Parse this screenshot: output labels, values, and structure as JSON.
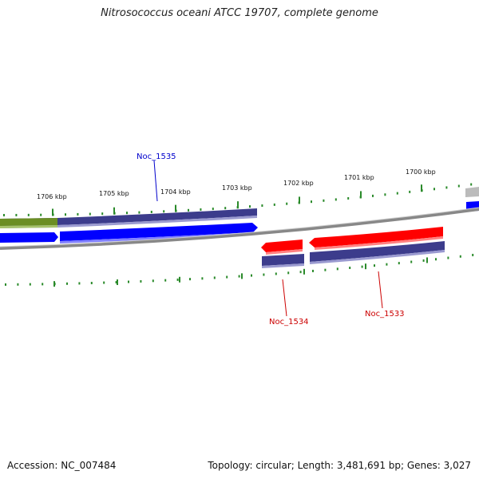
{
  "title": "Nitrosococcus oceani ATCC 19707, complete genome",
  "footer": {
    "accession": "Accession: NC_007484",
    "summary": "Topology: circular; Length: 3,481,691 bp; Genes: 3,027"
  },
  "scale": {
    "ticks": [
      "1706 kbp",
      "1705 kbp",
      "1704 kbp",
      "1703 kbp",
      "1702 kbp",
      "1701 kbp",
      "1700 kbp"
    ]
  },
  "genes": [
    {
      "name": "Noc_1535",
      "color": "#0000cc"
    },
    {
      "name": "Noc_1534",
      "color": "#cc0000"
    },
    {
      "name": "Noc_1533",
      "color": "#cc0000"
    }
  ],
  "colors": {
    "forward": "#0000ff",
    "reverse": "#ff0000",
    "cds": "#3c3c8c",
    "green_feature": "#6b8e23",
    "ticks": "#2a8a2a",
    "backbone": "#888888"
  }
}
